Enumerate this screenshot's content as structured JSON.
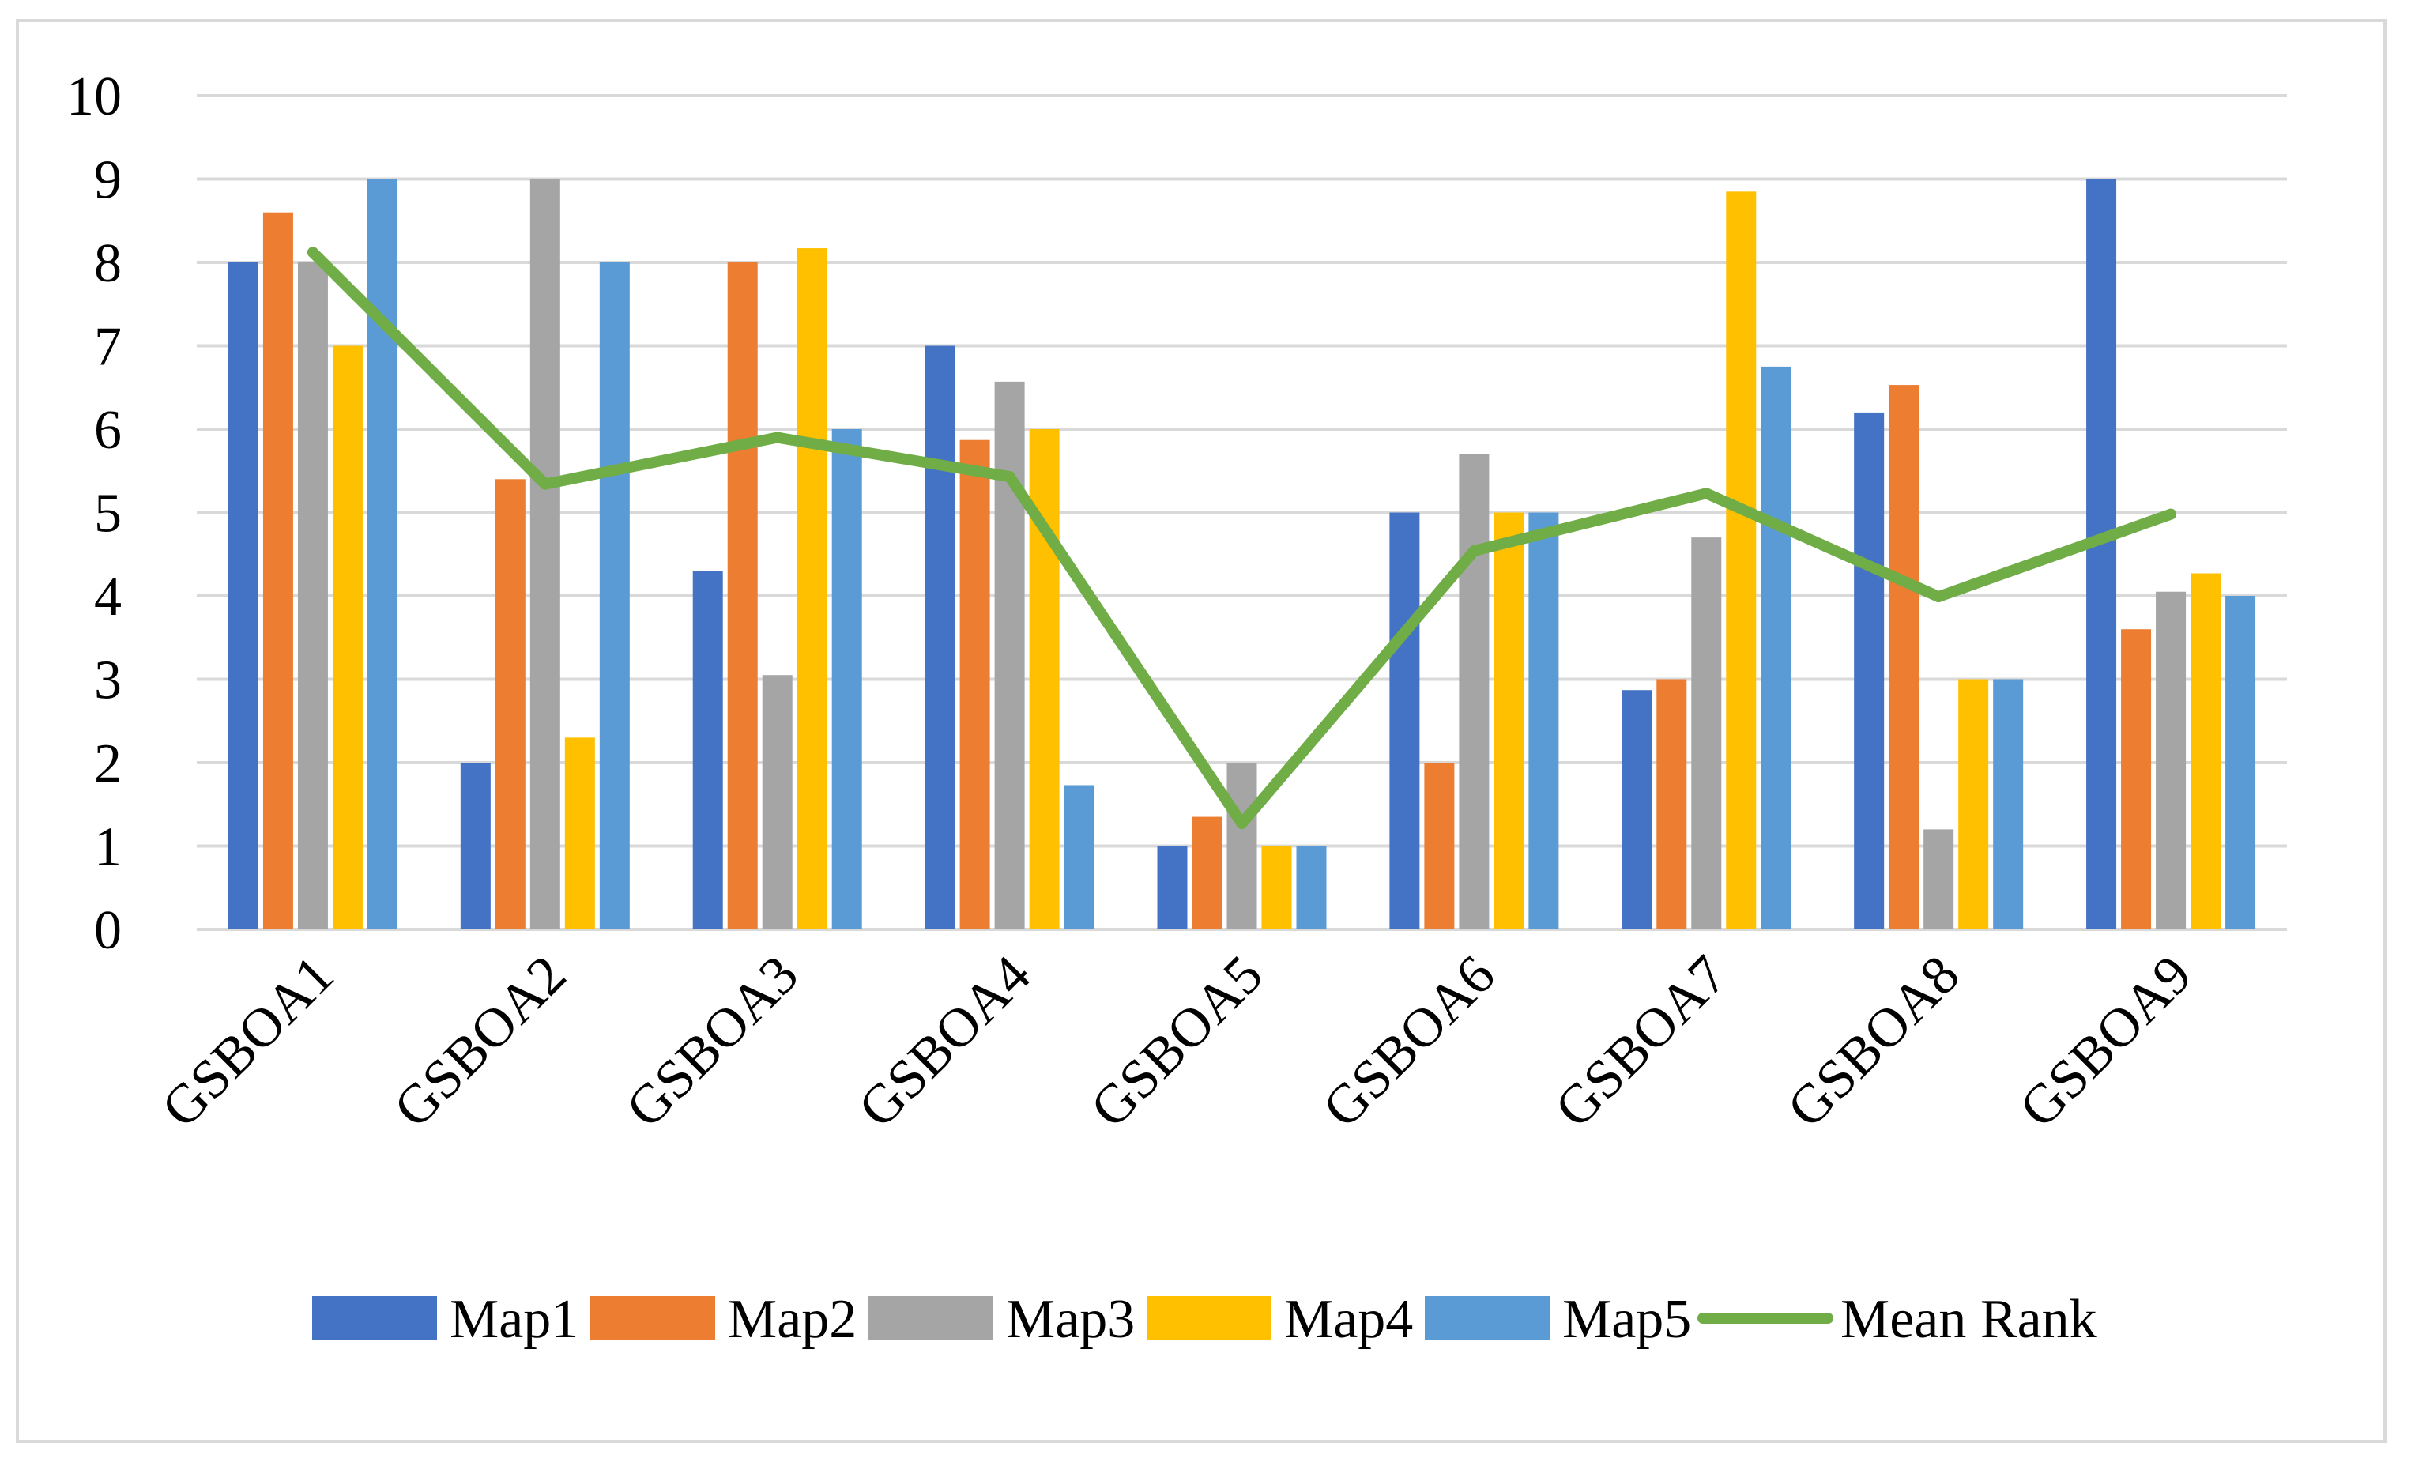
{
  "chart_data": {
    "type": "bar",
    "title": "",
    "xlabel": "",
    "ylabel": "",
    "ylim": [
      0,
      10
    ],
    "yticks": [
      0,
      1,
      2,
      3,
      4,
      5,
      6,
      7,
      8,
      9,
      10
    ],
    "grid": true,
    "legend_position": "bottom",
    "categories": [
      "GSBOA1",
      "GSBOA2",
      "GSBOA3",
      "GSBOA4",
      "GSBOA5",
      "GSBOA6",
      "GSBOA7",
      "GSBOA8",
      "GSBOA9"
    ],
    "series": [
      {
        "name": "Map1",
        "type": "bar",
        "color": "#4472c4",
        "values": [
          8,
          2,
          4.3,
          7,
          1,
          5,
          2.87,
          6.2,
          9
        ]
      },
      {
        "name": "Map2",
        "type": "bar",
        "color": "#ed7d31",
        "values": [
          8.6,
          5.4,
          8,
          5.87,
          1.35,
          2,
          3,
          6.53,
          3.6
        ]
      },
      {
        "name": "Map3",
        "type": "bar",
        "color": "#a5a5a5",
        "values": [
          8,
          9,
          3.05,
          6.57,
          2,
          5.7,
          4.7,
          1.2,
          4.05
        ]
      },
      {
        "name": "Map4",
        "type": "bar",
        "color": "#ffc000",
        "values": [
          7,
          2.3,
          8.17,
          6,
          1,
          5,
          8.85,
          3,
          4.27
        ]
      },
      {
        "name": "Map5",
        "type": "bar",
        "color": "#5b9bd5",
        "values": [
          9,
          8,
          6,
          1.73,
          1,
          5,
          6.75,
          3,
          4
        ]
      },
      {
        "name": "Mean Rank",
        "type": "line",
        "color": "#70ad47",
        "values": [
          8.12,
          5.34,
          5.9,
          5.43,
          1.27,
          4.54,
          5.23,
          3.99,
          4.98
        ]
      }
    ]
  }
}
